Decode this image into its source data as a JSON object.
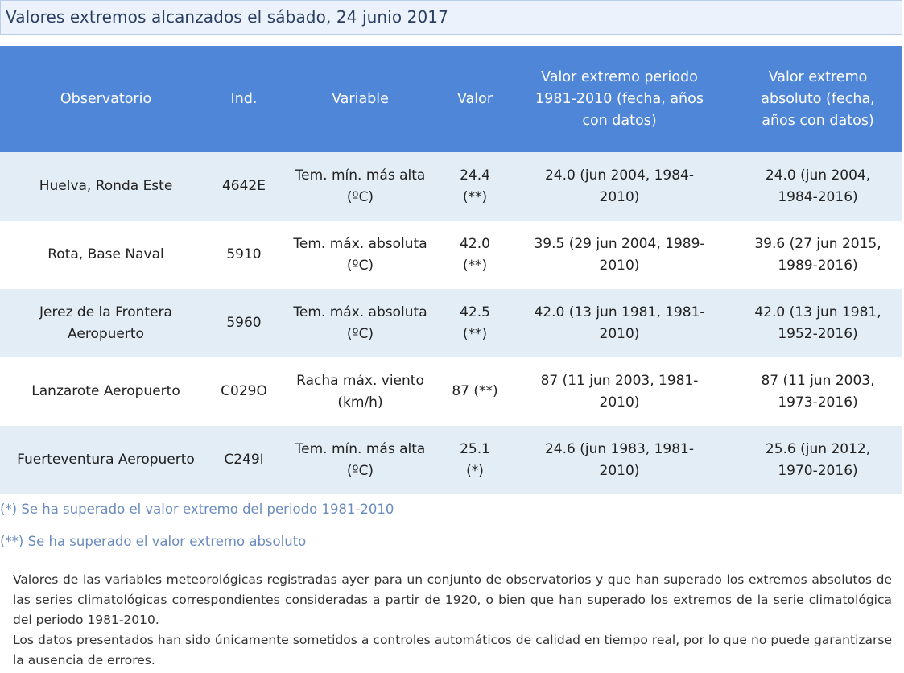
{
  "title": "Valores extremos alcanzados el sábado, 24 junio 2017",
  "table": {
    "headers": {
      "observatorio": "Observatorio",
      "ind": "Ind.",
      "variable": "Variable",
      "valor": "Valor",
      "periodo": "Valor extremo periodo 1981-2010 (fecha, años con datos)",
      "absoluto": "Valor extremo absoluto (fecha, años con datos)"
    },
    "rows": [
      {
        "observatorio": "Huelva, Ronda Este",
        "ind": "4642E",
        "variable": "Tem. mín. más alta (ºC)",
        "valor": "24.4 (**)",
        "periodo": "24.0 (jun 2004, 1984-2010)",
        "absoluto": "24.0 (jun 2004, 1984-2016)"
      },
      {
        "observatorio": "Rota, Base Naval",
        "ind": "5910",
        "variable": "Tem. máx. absoluta (ºC)",
        "valor": "42.0 (**)",
        "periodo": "39.5 (29 jun 2004, 1989-2010)",
        "absoluto": "39.6 (27 jun 2015, 1989-2016)"
      },
      {
        "observatorio": "Jerez de la Frontera Aeropuerto",
        "ind": "5960",
        "variable": "Tem. máx. absoluta (ºC)",
        "valor": "42.5 (**)",
        "periodo": "42.0 (13 jun 1981, 1981-2010)",
        "absoluto": "42.0 (13 jun 1981, 1952-2016)"
      },
      {
        "observatorio": "Lanzarote Aeropuerto",
        "ind": "C029O",
        "variable": "Racha máx. viento (km/h)",
        "valor": "87 (**)",
        "periodo": "87 (11 jun 2003, 1981-2010)",
        "absoluto": "87 (11 jun 2003, 1973-2016)"
      },
      {
        "observatorio": "Fuerteventura Aeropuerto",
        "ind": "C249I",
        "variable": "Tem. mín. más alta (ºC)",
        "valor": "25.1 (*)",
        "periodo": "24.6 (jun 1983, 1981-2010)",
        "absoluto": "25.6 (jun 2012, 1970-2016)"
      }
    ]
  },
  "notes": {
    "note1": "(*) Se ha superado el valor extremo del periodo 1981-2010",
    "note2": "(**) Se ha superado el valor extremo absoluto"
  },
  "info": {
    "paragraph1": "Valores de las variables meteorológicas registradas ayer para un conjunto de observatorios y que han superado los extremos absolutos de las series climatológicas correspondientes consideradas a partir de 1920, o bien que han superado los extremos de la serie climatológica del periodo 1981-2010.",
    "paragraph2": "Los datos presentados han sido únicamente sometidos a controles automáticos de calidad en tiempo real, por lo que no puede garantizarse la ausencia de errores."
  }
}
